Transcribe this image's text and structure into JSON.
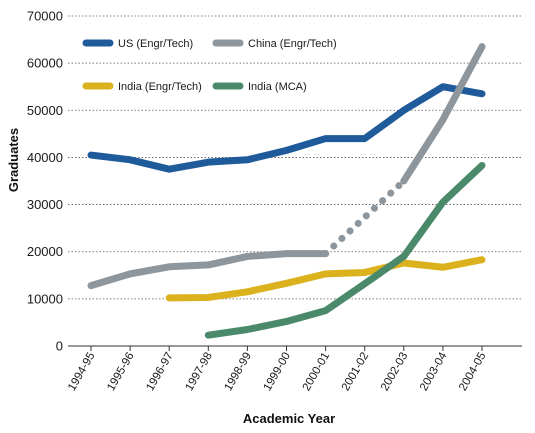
{
  "chart_data": {
    "type": "line",
    "title": "",
    "xlabel": "Academic Year",
    "ylabel": "Graduates",
    "categories": [
      "1994-95",
      "1995-96",
      "1996-97",
      "1997-98",
      "1998-99",
      "1999-00",
      "2000-01",
      "2001-02",
      "2002-03",
      "2003-04",
      "2004-05"
    ],
    "ylim": [
      0,
      70000
    ],
    "yticks": [
      0,
      10000,
      20000,
      30000,
      40000,
      50000,
      60000,
      70000
    ],
    "ytick_labels": [
      "0",
      "10000",
      "20000",
      "30000",
      "40000",
      "50000",
      "60000",
      "70000"
    ],
    "grid": "horizontal dotted",
    "legend_position": "top-left",
    "series": [
      {
        "name": "US (Engr/Tech)",
        "color": "#1f5b9a",
        "values": [
          40500,
          39500,
          37500,
          39000,
          39500,
          41500,
          44000,
          44000,
          50000,
          55000,
          53500
        ]
      },
      {
        "name": "China (Engr/Tech)",
        "color": "#8c969c",
        "dashed_from": "2000-01",
        "values": [
          12800,
          15300,
          16800,
          17200,
          19000,
          19600,
          19600,
          null,
          35000,
          48000,
          63500
        ]
      },
      {
        "name": "India (Engr/Tech)",
        "color": "#dbb21e",
        "values": [
          null,
          null,
          10200,
          10300,
          11500,
          13300,
          15300,
          15600,
          17600,
          16700,
          18300
        ]
      },
      {
        "name": "India (MCA)",
        "color": "#4a8a6a",
        "values": [
          null,
          null,
          null,
          2300,
          3500,
          5200,
          7500,
          13200,
          19000,
          30500,
          38300
        ]
      }
    ]
  }
}
